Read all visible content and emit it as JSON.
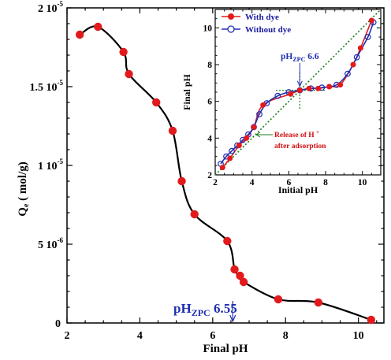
{
  "chart_data": [
    {
      "type": "line",
      "xlabel": "Final pH",
      "ylabel": "Q",
      "ylabel_sub": "e",
      "ylabel_unit": " ( mol/g)",
      "xlim": [
        2,
        10.7
      ],
      "ylim": [
        0,
        2e-05
      ],
      "x_ticks": [
        2,
        4,
        6,
        8,
        10
      ],
      "x_tick_labels": [
        "2",
        "4",
        "6",
        "8",
        "10"
      ],
      "y_ticks": [
        0,
        5e-06,
        1e-05,
        1.5e-05,
        2e-05
      ],
      "y_tick_labels": [
        {
          "mant": "0",
          "exp": ""
        },
        {
          "mant": "5 10",
          "exp": "-6"
        },
        {
          "mant": "1 10",
          "exp": "-5"
        },
        {
          "mant": "1.5 10",
          "exp": "-5"
        },
        {
          "mant": "2 10",
          "exp": "-5"
        }
      ],
      "series": [
        {
          "marker_color": "#e31a1c",
          "line_color": "#000000",
          "x": [
            2.35,
            2.85,
            3.55,
            3.7,
            4.45,
            4.9,
            5.15,
            5.5,
            6.4,
            6.6,
            6.75,
            6.85,
            7.8,
            8.9,
            10.35
          ],
          "y": [
            1.83e-05,
            1.88e-05,
            1.72e-05,
            1.58e-05,
            1.4e-05,
            1.22e-05,
            9e-06,
            6.9e-06,
            5.2e-06,
            3.4e-06,
            3e-06,
            2.6e-06,
            1.5e-06,
            1.3e-06,
            2e-07
          ]
        }
      ],
      "annotations": [
        {
          "main": "pH",
          "sub": "ZPC",
          "value": " 6.55",
          "x": 6.55,
          "color": "#1f2fb0"
        }
      ]
    },
    {
      "type": "line",
      "xlabel": "Initial pH",
      "ylabel": "Final pH",
      "xlim": [
        2,
        11
      ],
      "ylim": [
        2,
        11
      ],
      "x_ticks": [
        2,
        4,
        6,
        8,
        10
      ],
      "y_ticks": [
        2,
        4,
        6,
        8,
        10
      ],
      "tick_labels": [
        "2",
        "4",
        "6",
        "8",
        "10"
      ],
      "legend_position": "top-left",
      "series": [
        {
          "name": "With dye",
          "color": "#e31a1c",
          "line_color": "#e31a1c",
          "marker": "filled-circle",
          "x": [
            2.4,
            2.8,
            3.3,
            3.7,
            4.1,
            4.6,
            6.1,
            6.6,
            7.1,
            7.6,
            8.2,
            8.8,
            9.5,
            9.9,
            10.5
          ],
          "y": [
            2.4,
            2.9,
            3.6,
            4.0,
            4.6,
            5.8,
            6.4,
            6.6,
            6.7,
            6.7,
            6.8,
            6.9,
            8.0,
            8.9,
            10.4
          ]
        },
        {
          "name": "Without dye",
          "color": "#1f2fb0",
          "line_color": "#1f2fb0",
          "marker": "open-circle",
          "x": [
            2.3,
            2.6,
            2.9,
            3.2,
            3.5,
            3.8,
            4.1,
            4.4,
            4.8,
            5.4,
            6.0,
            6.6,
            7.2,
            7.8,
            8.6,
            9.2,
            9.7,
            10.3,
            10.6
          ],
          "y": [
            2.6,
            3.0,
            3.3,
            3.6,
            3.9,
            4.2,
            4.6,
            5.3,
            5.9,
            6.3,
            6.5,
            6.6,
            6.7,
            6.75,
            6.9,
            7.5,
            8.4,
            9.5,
            10.3
          ]
        }
      ],
      "reference_line": {
        "from": [
          2,
          2
        ],
        "to": [
          11,
          11
        ],
        "color": "#1a7a1a"
      },
      "pzc_label": {
        "main": "pH",
        "sub": "ZPC",
        "value": " 6.6",
        "x": 6.6,
        "y": 6.6
      },
      "release_label": [
        "Release of H ",
        "+",
        "after adsorption"
      ]
    }
  ]
}
